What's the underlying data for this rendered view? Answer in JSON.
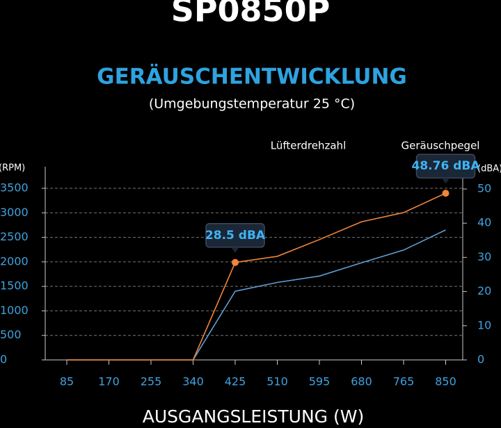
{
  "chart_data": {
    "type": "line",
    "title": "SP0850P",
    "subtitle": "GERÄUSCHENTWICKLUNG",
    "note": "(Umgebungstemperatur 25 °C)",
    "xlabel": "AUSGANGSLEISTUNG (W)",
    "ylabel": "(RPM)",
    "y2label": "(dBA)",
    "categories": [
      85,
      170,
      255,
      340,
      425,
      510,
      595,
      680,
      765,
      850
    ],
    "ylim": [
      0,
      3500
    ],
    "yticks": [
      0,
      500,
      1000,
      1500,
      2000,
      2500,
      3000,
      3500
    ],
    "y2lim": [
      0,
      50
    ],
    "y2ticks": [
      0,
      10,
      20,
      30,
      40,
      50
    ],
    "grid": true,
    "series": [
      {
        "name": "Lüfterdrehzahl",
        "color": "#5f9fd6",
        "values": [
          0,
          0,
          0,
          0,
          1400,
          1580,
          1710,
          1980,
          2240,
          2650
        ]
      },
      {
        "name": "Geräuschpegel",
        "color": "#f0863a",
        "axis": "y2",
        "values": [
          0,
          0,
          0,
          0,
          28.5,
          30.3,
          35.2,
          40.4,
          43.1,
          48.76
        ],
        "value_labels": [
          null,
          null,
          null,
          null,
          "28.5 dBA",
          null,
          null,
          null,
          null,
          "48.76 dBA"
        ]
      }
    ]
  }
}
